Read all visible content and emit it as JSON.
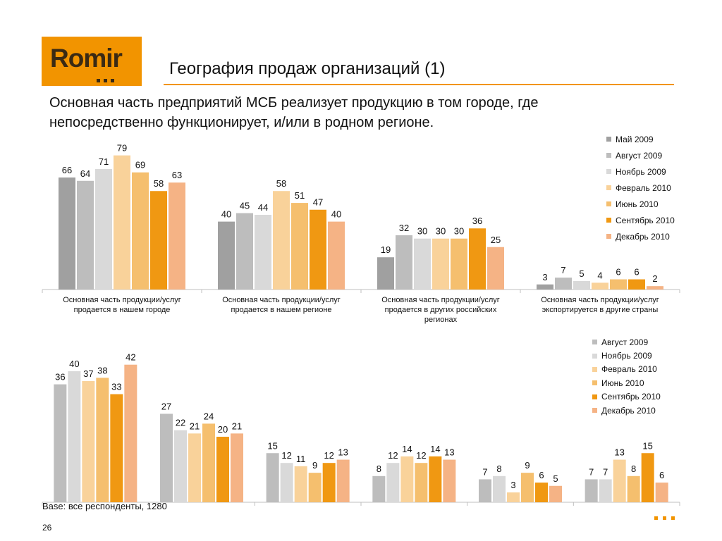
{
  "header": {
    "logo_text": "Romir",
    "title": "География продаж организаций (1)",
    "subtitle": "Основная часть предприятий МСБ реализует продукцию в том городе, где непосредственно функционирует, и/или в родном регионе."
  },
  "footer": {
    "base_note": "Base: все респонденты, 1280",
    "page_number": "26"
  },
  "colors": {
    "brand": "#f29400",
    "series": [
      "#a0a0a0",
      "#bdbdbd",
      "#d9d9d9",
      "#f9d29a",
      "#f5bf6e",
      "#f09812",
      "#f5b385"
    ]
  },
  "chart_data": [
    {
      "type": "bar",
      "categories": [
        "Основная часть продукции/услуг продается в нашем городе",
        "Основная  часть продукции/услуг продается в нашем регионе",
        "Основная  часть продукции/услуг продается в других российских регионах",
        "Основная  часть продукции/услуг экспортируется в другие страны"
      ],
      "series": [
        {
          "name": "Май 2009",
          "values": [
            66,
            40,
            19,
            3
          ]
        },
        {
          "name": "Август 2009",
          "values": [
            64,
            45,
            32,
            7
          ]
        },
        {
          "name": "Ноябрь 2009",
          "values": [
            71,
            44,
            30,
            5
          ]
        },
        {
          "name": "Февраль 2010",
          "values": [
            79,
            58,
            30,
            4
          ]
        },
        {
          "name": "Июнь 2010",
          "values": [
            69,
            51,
            30,
            6
          ]
        },
        {
          "name": "Сентябрь 2010",
          "values": [
            58,
            47,
            36,
            6
          ]
        },
        {
          "name": "Декабрь 2010",
          "values": [
            63,
            40,
            25,
            2
          ]
        }
      ],
      "legend_position": "right"
    },
    {
      "type": "bar",
      "categories": [
        "",
        "",
        "",
        "",
        "",
        ""
      ],
      "series": [
        {
          "name": "Август 2009",
          "values": [
            36,
            27,
            15,
            8,
            7,
            7
          ]
        },
        {
          "name": "Ноябрь 2009",
          "values": [
            40,
            22,
            12,
            12,
            8,
            7
          ]
        },
        {
          "name": "Февраль 2010",
          "values": [
            37,
            21,
            11,
            14,
            3,
            13
          ]
        },
        {
          "name": "Июнь 2010",
          "values": [
            38,
            24,
            9,
            12,
            9,
            8
          ]
        },
        {
          "name": "Сентябрь 2010",
          "values": [
            33,
            20,
            12,
            14,
            6,
            15
          ]
        },
        {
          "name": "Декабрь 2010",
          "values": [
            42,
            21,
            13,
            13,
            5,
            6
          ]
        }
      ],
      "legend_position": "right"
    }
  ]
}
